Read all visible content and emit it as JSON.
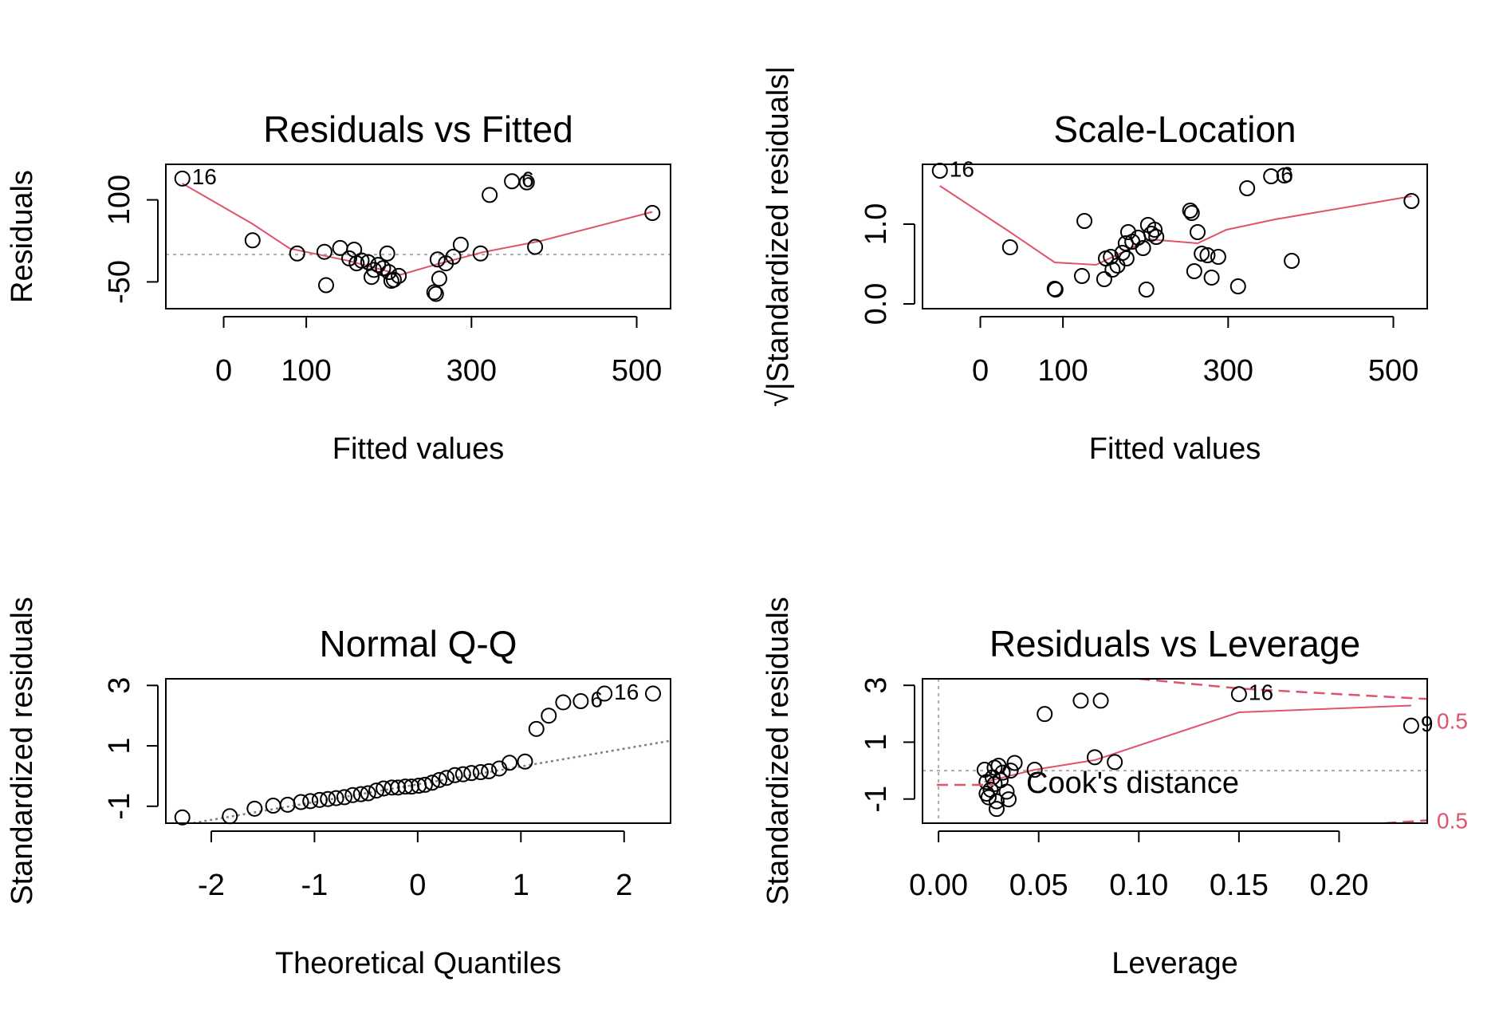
{
  "chart_data": [
    {
      "type": "scatter",
      "title": "Residuals vs Fitted",
      "xlabel": "Fitted values",
      "ylabel": "Residuals",
      "xlim": [
        -70,
        541
      ],
      "ylim": [
        -99,
        165
      ],
      "xticks": [
        0,
        100,
        300,
        500
      ],
      "yticks": [
        -50,
        100
      ],
      "point_color": "#000000",
      "x": [
        -50,
        35,
        89,
        122,
        124,
        141,
        152,
        158,
        161,
        167,
        175,
        179,
        182,
        187,
        193,
        198,
        200,
        203,
        206,
        212,
        255,
        257,
        261,
        259,
        269,
        278,
        287,
        311,
        322,
        349,
        367,
        377,
        519
      ],
      "y": [
        139,
        26,
        2,
        5,
        -56,
        12,
        -7,
        9,
        -16,
        -11,
        -14,
        -41,
        -28,
        -19,
        -25,
        2,
        -32,
        -48,
        -46,
        -39,
        -69,
        -72,
        -44,
        -9,
        -16,
        -4,
        18,
        2,
        109,
        134,
        132,
        14,
        76
      ],
      "smooth": {
        "color": "#DF536B",
        "x": [
          -50,
          35,
          80,
          150,
          214,
          255,
          313,
          384,
          519
        ],
        "y": [
          130,
          56,
          11,
          -11,
          -37,
          -19,
          4,
          25,
          78
        ]
      },
      "hline": 0,
      "annotations": [
        {
          "text": "16",
          "x": -50,
          "y": 139
        },
        {
          "text": "6",
          "x": 349,
          "y": 134
        }
      ]
    },
    {
      "type": "scatter",
      "title": "Scale-Location",
      "xlabel": "Fitted values",
      "ylabel": "√|Standardized residuals|",
      "xlim": [
        -70,
        541
      ],
      "ylim": [
        -0.06,
        1.75
      ],
      "xticks": [
        0,
        100,
        300,
        500
      ],
      "yticks": [
        {
          "value": 0,
          "label": "0.0"
        },
        {
          "value": 1,
          "label": "1.0"
        }
      ],
      "point_color": "#000000",
      "x": [
        -49,
        36,
        90,
        91,
        123,
        126,
        150,
        152,
        158,
        160,
        166,
        172,
        177,
        179,
        176,
        184,
        191,
        197,
        201,
        203,
        207,
        211,
        213,
        254,
        256,
        259,
        263,
        268,
        275,
        280,
        288,
        312,
        323,
        352,
        368,
        377,
        522
      ],
      "y": [
        1.67,
        0.71,
        0.19,
        0.18,
        0.35,
        1.04,
        0.31,
        0.57,
        0.59,
        0.43,
        0.48,
        0.64,
        0.57,
        0.9,
        0.76,
        0.78,
        0.83,
        0.7,
        0.18,
        0.99,
        0.88,
        0.93,
        0.84,
        1.17,
        1.14,
        0.41,
        0.9,
        0.63,
        0.61,
        0.33,
        0.59,
        0.22,
        1.45,
        1.6,
        1.61,
        0.54,
        1.29
      ],
      "smooth": {
        "color": "#DF536B",
        "x": [
          -49,
          36,
          90,
          140,
          205,
          263,
          298,
          357,
          522
        ],
        "y": [
          1.48,
          0.9,
          0.52,
          0.49,
          0.81,
          0.76,
          0.93,
          1.06,
          1.35
        ]
      },
      "annotations": [
        {
          "text": "16",
          "x": -49,
          "y": 1.67
        },
        {
          "text": "6",
          "x": 352,
          "y": 1.6
        }
      ]
    },
    {
      "type": "scatter",
      "title": "Normal Q-Q",
      "xlabel": "Theoretical Quantiles",
      "ylabel": "Standardized residuals",
      "xlim": [
        -2.44,
        2.45
      ],
      "ylim": [
        -1.56,
        3.22
      ],
      "xticks": [
        -2,
        -1,
        0,
        1,
        2
      ],
      "yticks": [
        -1,
        1,
        3
      ],
      "point_color": "#000000",
      "x": [
        -2.28,
        -1.82,
        -1.58,
        -1.4,
        -1.26,
        -1.13,
        -1.04,
        -0.95,
        -0.87,
        -0.79,
        -0.71,
        -0.63,
        -0.55,
        -0.48,
        -0.4,
        -0.33,
        -0.25,
        -0.19,
        -0.12,
        -0.06,
        0.01,
        0.07,
        0.14,
        0.21,
        0.28,
        0.36,
        0.44,
        0.52,
        0.61,
        0.69,
        0.79,
        0.89,
        1.04,
        1.15,
        1.27,
        1.41,
        1.58,
        1.81,
        2.28
      ],
      "y": [
        -1.37,
        -1.33,
        -1.08,
        -0.98,
        -0.95,
        -0.86,
        -0.83,
        -0.79,
        -0.76,
        -0.73,
        -0.7,
        -0.63,
        -0.6,
        -0.57,
        -0.48,
        -0.41,
        -0.38,
        -0.38,
        -0.35,
        -0.35,
        -0.32,
        -0.29,
        -0.22,
        -0.13,
        -0.06,
        0.03,
        0.06,
        0.1,
        0.13,
        0.16,
        0.25,
        0.44,
        0.48,
        1.56,
        2.0,
        2.44,
        2.48,
        2.73,
        2.73
      ],
      "reference_line": {
        "color": "#808080",
        "x": [
          -2.44,
          2.45
        ],
        "y": [
          -1.71,
          1.17
        ]
      },
      "annotations": [
        {
          "text": "6",
          "x": 1.58,
          "y": 2.48
        },
        {
          "text": "16",
          "x": 1.81,
          "y": 2.73
        }
      ]
    },
    {
      "type": "scatter",
      "title": "Residuals vs Leverage",
      "xlabel": "Leverage",
      "ylabel": "Standardized residuals",
      "xlim": [
        -0.008,
        0.244
      ],
      "ylim": [
        -1.85,
        3.23
      ],
      "xticks": [
        {
          "value": 0,
          "label": "0.00"
        },
        {
          "value": 0.05,
          "label": "0.05"
        },
        {
          "value": 0.1,
          "label": "0.10"
        },
        {
          "value": 0.15,
          "label": "0.15"
        },
        {
          "value": 0.2,
          "label": "0.20"
        }
      ],
      "yticks": [
        -1,
        1,
        3
      ],
      "point_color": "#000000",
      "x": [
        0.023,
        0.024,
        0.024,
        0.025,
        0.026,
        0.027,
        0.028,
        0.028,
        0.029,
        0.029,
        0.03,
        0.031,
        0.032,
        0.034,
        0.035,
        0.036,
        0.038,
        0.048,
        0.053,
        0.071,
        0.081,
        0.078,
        0.088,
        0.15,
        0.236
      ],
      "y": [
        0.03,
        -0.4,
        -0.81,
        -0.94,
        -0.67,
        -0.24,
        0.1,
        -0.47,
        -1.08,
        -1.35,
        0.17,
        -0.34,
        -0.07,
        -0.74,
        -1.01,
        0.0,
        0.27,
        0.03,
        1.99,
        2.46,
        2.46,
        0.47,
        0.3,
        2.69,
        1.58
      ],
      "smooth": {
        "color": "#DF536B",
        "x": [
          0.023,
          0.048,
          0.078,
          0.15,
          0.236
        ],
        "y": [
          -0.4,
          0.03,
          0.37,
          2.05,
          2.29
        ]
      },
      "hline": 0,
      "vline": 0,
      "contour_color": "#DF536B",
      "cook_contours": [
        {
          "level": 0.5,
          "label_y": 1.68,
          "x": [
            0.1,
            0.15,
            0.2,
            0.244
          ],
          "y": [
            3.23,
            2.89,
            2.69,
            2.52
          ]
        },
        {
          "level": 0.5,
          "label_y": -1.83,
          "x": [
            0.223,
            0.244
          ],
          "y": [
            -1.85,
            -1.75
          ]
        }
      ],
      "legend": "Cook's distance",
      "annotations": [
        {
          "text": "16",
          "x": 0.15,
          "y": 2.69
        },
        {
          "text": "9",
          "x": 0.236,
          "y": 1.58
        }
      ]
    }
  ]
}
